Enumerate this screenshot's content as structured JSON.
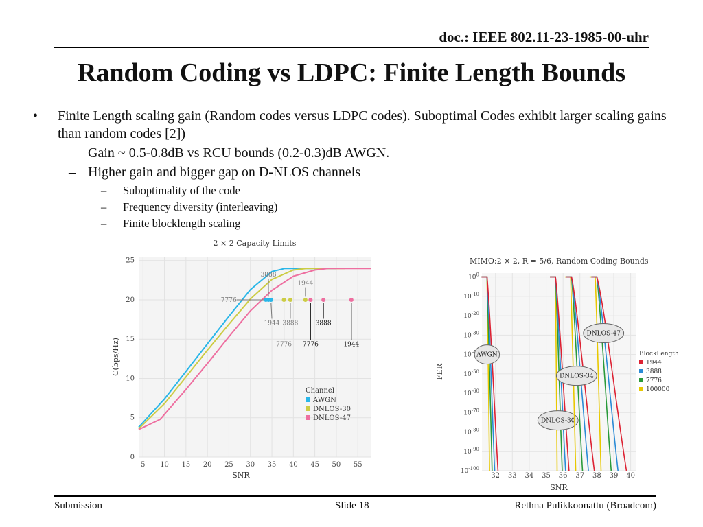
{
  "header": {
    "doc_id": "doc.: IEEE 802.11-23-1985-00-uhr"
  },
  "slide_title": "Random Coding vs LDPC: Finite Length Bounds",
  "bullets": {
    "main": {
      "marker": "•",
      "text": "Finite Length scaling gain (Random codes versus LDPC codes). Suboptimal Codes exhibit larger scaling gains than random codes [2])"
    },
    "sub": [
      {
        "marker": "–",
        "text": "Gain ~ 0.5-0.8dB vs RCU bounds (0.2-0.3)dB AWGN."
      },
      {
        "marker": "–",
        "text": "Higher gain and bigger gap on D-NLOS channels"
      }
    ],
    "subsub": [
      {
        "marker": "–",
        "text": "Suboptimality of the code"
      },
      {
        "marker": "–",
        "text": "Frequency diversity (interleaving)"
      },
      {
        "marker": "–",
        "text": "Finite blocklength scaling"
      }
    ]
  },
  "footer": {
    "left": "Submission",
    "center": "Slide 18",
    "right": "Rethna Pulikkoonattu (Broadcom)"
  },
  "chart_data": [
    {
      "type": "line",
      "title": "2 × 2 Capacity Limits",
      "xlabel": "SNR",
      "ylabel": "C(bps/Hz)",
      "x_ticks": [
        5,
        10,
        15,
        20,
        25,
        30,
        35,
        40,
        45,
        50,
        55
      ],
      "y_ticks": [
        0,
        5,
        10,
        15,
        20,
        25
      ],
      "xlim": [
        4,
        58
      ],
      "ylim": [
        0,
        25.5
      ],
      "grid": true,
      "legend_title": "Channel",
      "legend_position": "lower-right",
      "series": [
        {
          "name": "AWGN",
          "color": "#29b6e8",
          "x": [
            4,
            10,
            15,
            20,
            25,
            30,
            35,
            38,
            40,
            42,
            50
          ],
          "y": [
            3.8,
            7.4,
            10.9,
            14.4,
            17.9,
            21.3,
            23.6,
            24.0,
            24.0,
            24.0,
            24.0
          ]
        },
        {
          "name": "DNLOS-30",
          "color": "#cccc44",
          "x": [
            4,
            10,
            15,
            20,
            25,
            30,
            35,
            40,
            43,
            46,
            52
          ],
          "y": [
            3.6,
            6.8,
            10.2,
            13.6,
            16.9,
            20.1,
            22.6,
            23.8,
            24.0,
            24.0,
            24.0
          ]
        },
        {
          "name": "DNLOS-47",
          "color": "#ee6fa0",
          "x": [
            4,
            9,
            15,
            20,
            25,
            30,
            35,
            40,
            45,
            48,
            58
          ],
          "y": [
            3.5,
            4.8,
            8.6,
            11.9,
            15.3,
            18.6,
            21.2,
            23.0,
            23.8,
            24.0,
            24.0
          ]
        }
      ],
      "points": [
        {
          "x": 33.6,
          "y": 20,
          "color": "#29b6e8"
        },
        {
          "x": 34.2,
          "y": 20,
          "color": "#29b6e8"
        },
        {
          "x": 34.8,
          "y": 20,
          "color": "#29b6e8"
        },
        {
          "x": 37.8,
          "y": 20,
          "color": "#cccc44"
        },
        {
          "x": 39.3,
          "y": 20,
          "color": "#cccc44"
        },
        {
          "x": 42.8,
          "y": 20,
          "color": "#cccc44"
        },
        {
          "x": 44.0,
          "y": 20,
          "color": "#ee6fa0"
        },
        {
          "x": 47.0,
          "y": 20,
          "color": "#ee6fa0"
        },
        {
          "x": 53.5,
          "y": 20,
          "color": "#ee6fa0"
        }
      ],
      "annotations": [
        {
          "text": "7776",
          "x": 26.8,
          "y": 20,
          "arrow_x": 33.6,
          "arrow_y": 20,
          "color": "#777777"
        },
        {
          "text": "3888",
          "x": 34.2,
          "y": 22.7,
          "arrow_x": 34.2,
          "arrow_y": 20.4,
          "color": "#777777"
        },
        {
          "text": "1944",
          "x": 35.0,
          "y": 17.6,
          "arrow_x": 34.8,
          "arrow_y": 19.6,
          "color": "#777777"
        },
        {
          "text": "1944",
          "x": 42.8,
          "y": 21.6,
          "arrow_x": 42.8,
          "arrow_y": 20.4,
          "color": "#777777"
        },
        {
          "text": "3888",
          "x": 39.3,
          "y": 17.6,
          "arrow_x": 39.3,
          "arrow_y": 19.6,
          "color": "#777777"
        },
        {
          "text": "7776",
          "x": 37.8,
          "y": 14.9,
          "arrow_x": 37.8,
          "arrow_y": 19.6,
          "color": "#777777"
        },
        {
          "text": "3888",
          "x": 47.0,
          "y": 17.6,
          "arrow_x": 47.0,
          "arrow_y": 19.6,
          "color": "#111111"
        },
        {
          "text": "7776",
          "x": 44.0,
          "y": 14.9,
          "arrow_x": 44.0,
          "arrow_y": 19.6,
          "color": "#111111"
        },
        {
          "text": "1944",
          "x": 53.5,
          "y": 14.9,
          "arrow_x": 53.5,
          "arrow_y": 19.6,
          "color": "#111111"
        }
      ]
    },
    {
      "type": "line",
      "title": "MIMO:2 × 2, R = 5/6, Random Coding Bounds",
      "xlabel": "SNR",
      "ylabel": "FER",
      "y_scale": "log",
      "x_ticks": [
        32,
        33,
        34,
        35,
        36,
        37,
        38,
        39,
        40
      ],
      "y_tick_exponents": [
        0,
        -10,
        -20,
        -30,
        -40,
        -50,
        -60,
        -70,
        -80,
        -90,
        -100
      ],
      "xlim": [
        31.2,
        40.3
      ],
      "ylim_exponent": [
        -100,
        2
      ],
      "grid": true,
      "legend_title": "BlockLength",
      "legend_position": "right",
      "series_legend": [
        {
          "name": "1944",
          "color": "#dd2233"
        },
        {
          "name": "3888",
          "color": "#2a8bd6"
        },
        {
          "name": "7776",
          "color": "#2a9a3a"
        },
        {
          "name": "100000",
          "color": "#e8c800"
        }
      ],
      "groups": [
        {
          "label": "AWGN",
          "label_x": 31.5,
          "label_exp": -40,
          "curves": [
            {
              "color": "#e8c800",
              "start_x": 31.5,
              "end_x": 31.65
            },
            {
              "color": "#2a9a3a",
              "start_x": 31.5,
              "end_x": 31.8
            },
            {
              "color": "#2a8bd6",
              "start_x": 31.5,
              "end_x": 31.95
            },
            {
              "color": "#dd2233",
              "start_x": 31.5,
              "end_x": 32.15
            }
          ]
        },
        {
          "label": "DNLOS-30",
          "label_x": 35.7,
          "label_exp": -74,
          "curves": [
            {
              "color": "#e8c800",
              "start_x": 35.55,
              "end_x": 35.65
            },
            {
              "color": "#2a9a3a",
              "start_x": 35.55,
              "end_x": 35.95
            },
            {
              "color": "#2a8bd6",
              "start_x": 35.55,
              "end_x": 36.15
            },
            {
              "color": "#dd2233",
              "start_x": 35.55,
              "end_x": 36.35
            }
          ]
        },
        {
          "label": "DNLOS-34",
          "label_x": 36.8,
          "label_exp": -51,
          "curves": [
            {
              "color": "#e8c800",
              "start_x": 36.45,
              "end_x": 36.75
            },
            {
              "color": "#2a9a3a",
              "start_x": 36.5,
              "end_x": 37.15
            },
            {
              "color": "#2a8bd6",
              "start_x": 36.5,
              "end_x": 37.5
            },
            {
              "color": "#dd2233",
              "start_x": 36.5,
              "end_x": 37.85
            }
          ]
        },
        {
          "label": "DNLOS-47",
          "label_x": 38.4,
          "label_exp": -29,
          "curves": [
            {
              "color": "#e8c800",
              "start_x": 37.9,
              "end_x": 38.25
            },
            {
              "color": "#2a9a3a",
              "start_x": 38.0,
              "end_x": 38.85
            },
            {
              "color": "#2a8bd6",
              "start_x": 38.0,
              "end_x": 39.25
            },
            {
              "color": "#dd2233",
              "start_x": 38.0,
              "end_x": 39.75
            }
          ]
        }
      ]
    }
  ]
}
